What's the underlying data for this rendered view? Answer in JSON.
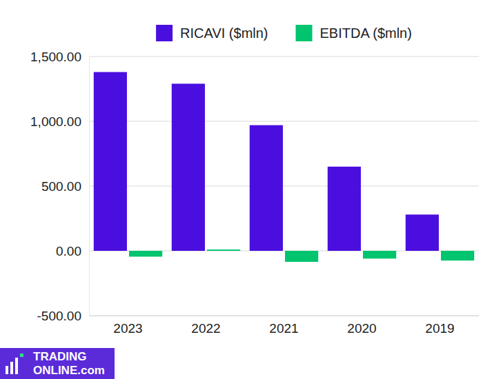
{
  "chart_data": {
    "type": "bar",
    "categories": [
      "2023",
      "2022",
      "2021",
      "2020",
      "2019"
    ],
    "series": [
      {
        "name": "RICAVI ($mln)",
        "color": "#4a0fdf",
        "values": [
          1380,
          1290,
          970,
          650,
          280
        ]
      },
      {
        "name": "EBITDA ($mln)",
        "color": "#00c46e",
        "values": [
          -45,
          10,
          -85,
          -60,
          -75
        ]
      }
    ],
    "ylim": [
      -500,
      1500
    ],
    "yticks": [
      {
        "value": -500,
        "label": "-500.00"
      },
      {
        "value": 0,
        "label": "0.00"
      },
      {
        "value": 500,
        "label": "500.00"
      },
      {
        "value": 1000,
        "label": "1,000.00"
      },
      {
        "value": 1500,
        "label": "1,500.00"
      }
    ],
    "grid": true,
    "legend": "top",
    "annotations": [
      "TRADING",
      "ONLINE.com"
    ]
  }
}
